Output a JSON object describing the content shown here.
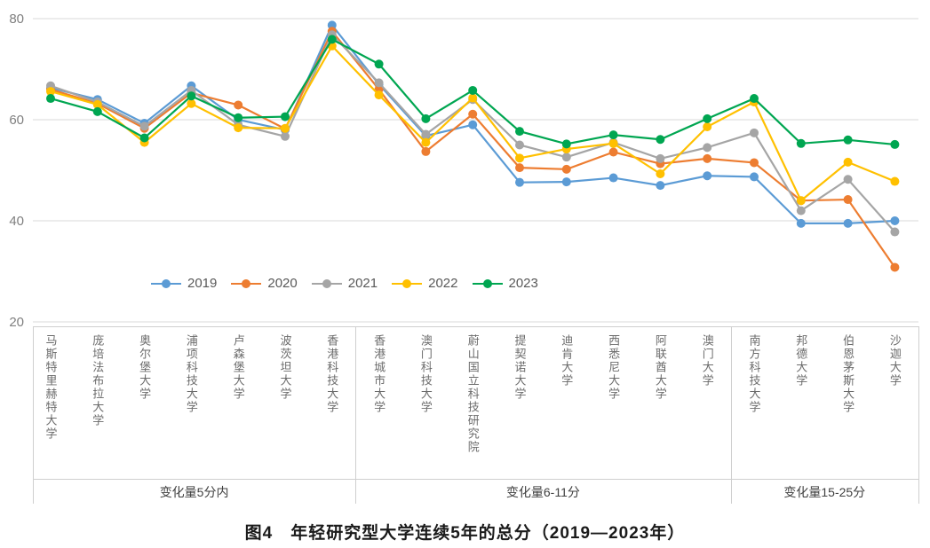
{
  "caption": "图4　年轻研究型大学连续5年的总分（2019—2023年）",
  "chart_data": {
    "type": "line",
    "title": "图4　年轻研究型大学连续5年的总分（2019—2023年）",
    "categories": [
      "马斯特里赫特大学",
      "庞培法布拉大学",
      "奥尔堡大学",
      "浦项科技大学",
      "卢森堡大学",
      "波茨坦大学",
      "香港科技大学",
      "香港城市大学",
      "澳门科技大学",
      "蔚山国立科技研究院",
      "提契诺大学",
      "迪肯大学",
      "西悉尼大学",
      "阿联酋大学",
      "澳门大学",
      "南方科技大学",
      "邦德大学",
      "伯恩茅斯大学",
      "沙迦大学"
    ],
    "category_groups": [
      {
        "label": "变化量5分内",
        "count": 7
      },
      {
        "label": "变化量6-11分",
        "count": 8
      },
      {
        "label": "变化量15-25分",
        "count": 4
      }
    ],
    "series": [
      {
        "name": "2019",
        "color": "#5B9BD5",
        "values": [
          66.3,
          64.0,
          59.3,
          66.7,
          60.0,
          58.0,
          78.7,
          67.0,
          56.8,
          59.0,
          47.6,
          47.7,
          48.5,
          47.0,
          48.9,
          48.7,
          39.5,
          39.5,
          40.0
        ]
      },
      {
        "name": "2020",
        "color": "#ED7D31",
        "values": [
          66.0,
          63.2,
          58.3,
          65.3,
          62.9,
          58.2,
          77.5,
          66.0,
          53.7,
          61.1,
          50.5,
          50.2,
          53.6,
          51.3,
          52.3,
          51.5,
          44.0,
          44.2,
          30.8
        ]
      },
      {
        "name": "2021",
        "color": "#A5A5A5",
        "values": [
          66.7,
          63.5,
          58.7,
          65.8,
          59.0,
          56.7,
          76.8,
          67.3,
          57.1,
          64.0,
          55.0,
          52.6,
          55.5,
          52.3,
          54.5,
          57.4,
          42.0,
          48.2,
          37.8
        ]
      },
      {
        "name": "2022",
        "color": "#FFC000",
        "values": [
          65.6,
          63.0,
          55.5,
          63.2,
          58.4,
          58.3,
          74.6,
          64.9,
          55.5,
          64.3,
          52.4,
          54.2,
          55.3,
          49.3,
          58.6,
          63.5,
          44.0,
          51.6,
          47.8
        ]
      },
      {
        "name": "2023",
        "color": "#00A651",
        "values": [
          64.2,
          61.6,
          56.4,
          64.7,
          60.4,
          60.6,
          75.9,
          71.0,
          60.2,
          65.8,
          57.7,
          55.2,
          57.0,
          56.1,
          60.2,
          64.2,
          55.3,
          56.0,
          55.1
        ]
      }
    ],
    "ylim": [
      20,
      80
    ],
    "yticks": [
      80,
      60,
      40,
      20
    ],
    "grid": "horizontal",
    "legend_position": "bottom-left-inside",
    "tick_label_color": "#7f7f7f",
    "gridline_color": "#d9d9d9"
  }
}
